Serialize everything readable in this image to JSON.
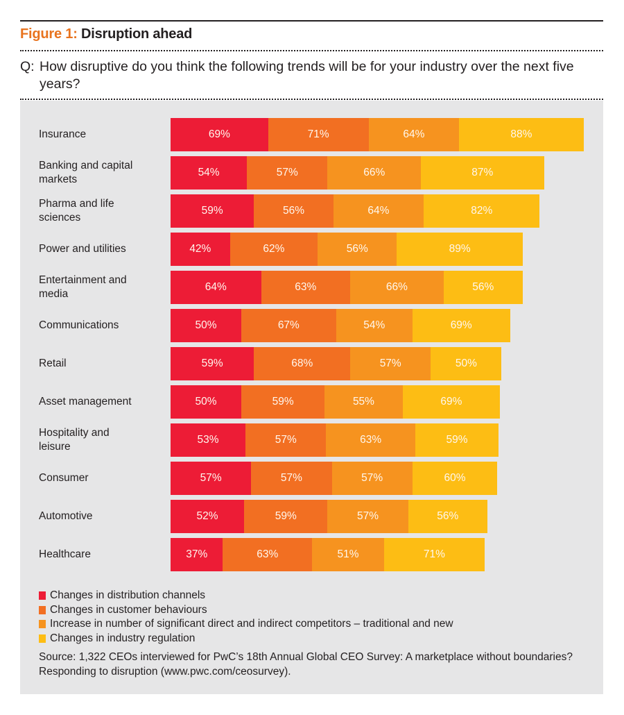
{
  "header": {
    "figure_number": "Figure 1:",
    "figure_title": "Disruption ahead",
    "question_prefix": "Q:",
    "question_text": "How disruptive do you think the following trends will be for your industry over the next five years?"
  },
  "colors": {
    "distribution": "#ed1c36",
    "customer": "#f26f22",
    "competitors": "#f6931f",
    "regulation": "#fdbd14",
    "accent": "#e8731e",
    "panel": "#e6e6e7"
  },
  "chart_data": {
    "type": "bar",
    "orientation": "horizontal",
    "stacked": true,
    "title": "Disruption ahead",
    "xlabel": "",
    "ylabel": "",
    "grid": false,
    "legend_position": "bottom-left",
    "categories": [
      "Insurance",
      "Banking and capital markets",
      "Pharma and life sciences",
      "Power and utilities",
      "Entertainment and media",
      "Communications",
      "Retail",
      "Asset management",
      "Hospitality and leisure",
      "Consumer",
      "Automotive",
      "Healthcare"
    ],
    "series": [
      {
        "name": "Changes in distribution channels",
        "color": "#ed1c36",
        "values": [
          69,
          54,
          59,
          42,
          64,
          50,
          59,
          50,
          53,
          57,
          52,
          37
        ]
      },
      {
        "name": "Changes in customer behaviours",
        "color": "#f26f22",
        "values": [
          71,
          57,
          56,
          62,
          63,
          67,
          68,
          59,
          57,
          57,
          59,
          63
        ]
      },
      {
        "name": "Increase in number of significant direct and indirect competitors – traditional and new",
        "color": "#f6931f",
        "values": [
          64,
          66,
          64,
          56,
          66,
          54,
          57,
          55,
          63,
          57,
          57,
          51
        ]
      },
      {
        "name": "Changes in industry regulation",
        "color": "#fdbd14",
        "values": [
          88,
          87,
          82,
          89,
          56,
          69,
          50,
          69,
          59,
          60,
          56,
          71
        ]
      }
    ],
    "value_suffix": "%"
  },
  "legend": [
    {
      "label": "Changes in distribution channels",
      "color": "#ed1c36"
    },
    {
      "label": "Changes in customer behaviours",
      "color": "#f26f22"
    },
    {
      "label": "Increase in number of significant direct and indirect competitors – traditional and new",
      "color": "#f6931f"
    },
    {
      "label": "Changes in industry regulation",
      "color": "#fdbd14"
    }
  ],
  "source": "Source: 1,322 CEOs interviewed for PwC’s 18th Annual Global CEO Survey: A marketplace without boundaries? Responding to disruption (www.pwc.com/ceosurvey)."
}
